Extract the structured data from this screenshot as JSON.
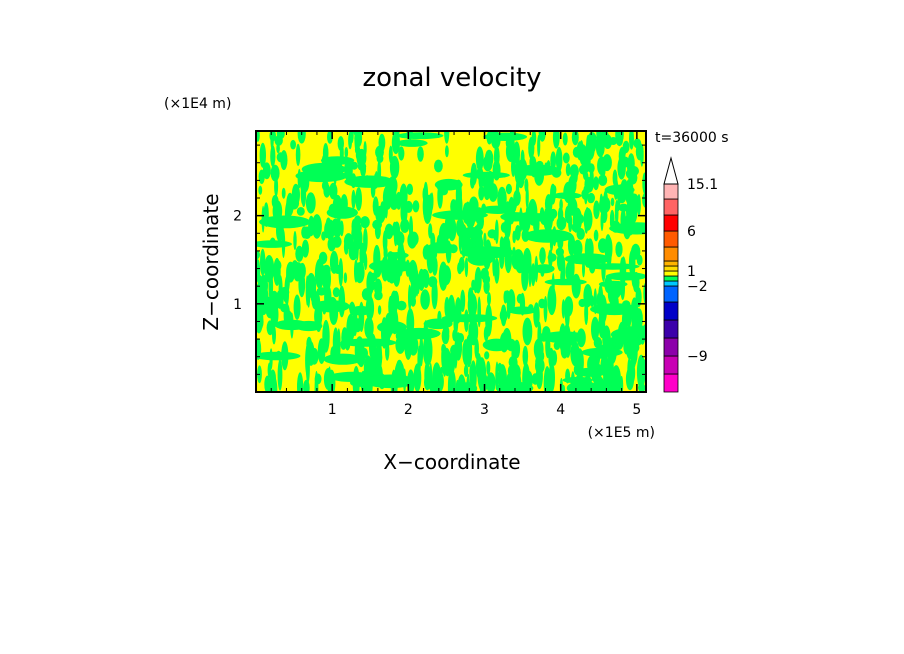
{
  "chart_data": {
    "type": "heatmap",
    "title": "zonal velocity",
    "xlabel": "X−coordinate",
    "ylabel": "Z−coordinate",
    "x_unit": "(×1E5 m)",
    "y_unit": "(×1E4 m)",
    "time_label": "t=36000 s",
    "xlim": [
      0,
      5.12
    ],
    "ylim": [
      0,
      2.96
    ],
    "x_ticks": [
      1,
      2,
      3,
      4,
      5
    ],
    "x_tick_labels": [
      "1",
      "2",
      "3",
      "4",
      "5"
    ],
    "y_ticks": [
      1,
      2
    ],
    "y_tick_labels": [
      "1",
      "2"
    ],
    "fill_colors": {
      "positive": "#ffff00",
      "negative": "#00ff55"
    },
    "colorbar": {
      "levels": [
        -15.1,
        -12,
        -9,
        -6,
        -4,
        -3,
        -2,
        -1,
        0,
        1,
        2,
        3,
        4,
        6,
        9,
        12,
        15.1
      ],
      "colors": [
        "#ff00c8",
        "#c800b4",
        "#8c00aa",
        "#3c00aa",
        "#0000c8",
        "#0064ff",
        "#00c8ff",
        "#00ff55",
        "#ffff00",
        "#ffdc00",
        "#ffb400",
        "#ff8c00",
        "#ff5a00",
        "#ff0000",
        "#ff6464",
        "#ffb4b4"
      ],
      "tick_values": [
        15.1,
        6,
        1,
        -2,
        -9
      ],
      "tick_labels": [
        "15.1",
        "6",
        "1",
        "−2",
        "−9"
      ]
    }
  }
}
